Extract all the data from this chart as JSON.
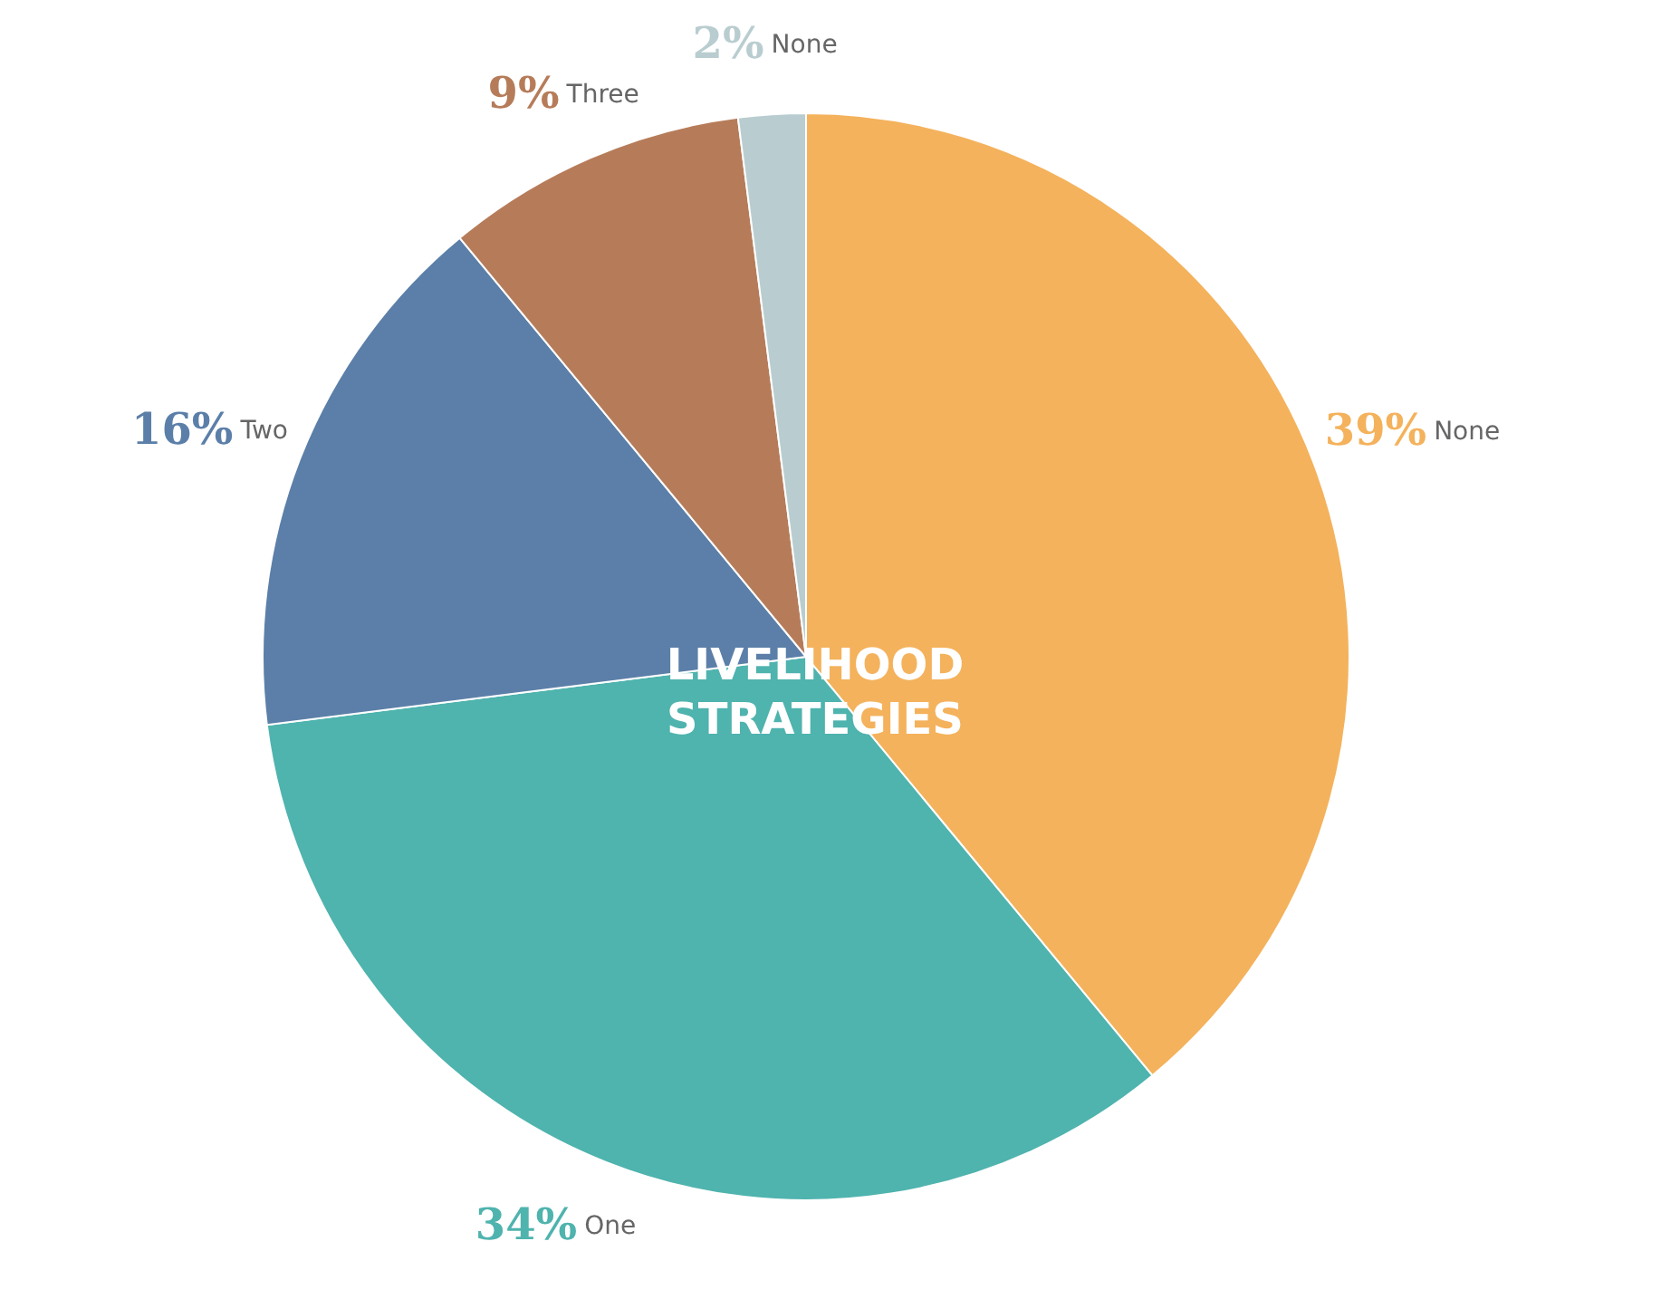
{
  "chart_data": {
    "type": "pie",
    "title": "LIVELIHOOD STRATEGIES",
    "categories": [
      "None",
      "One",
      "Two",
      "Three",
      "None"
    ],
    "values": [
      39,
      34,
      16,
      9,
      2
    ],
    "value_labels": [
      "39%",
      "34%",
      "16%",
      "9%",
      "2%"
    ],
    "colors": [
      "#f4b25c",
      "#4fb3ae",
      "#5b7fa8",
      "#b67c5a",
      "#b9cdd0"
    ],
    "legend": false
  }
}
